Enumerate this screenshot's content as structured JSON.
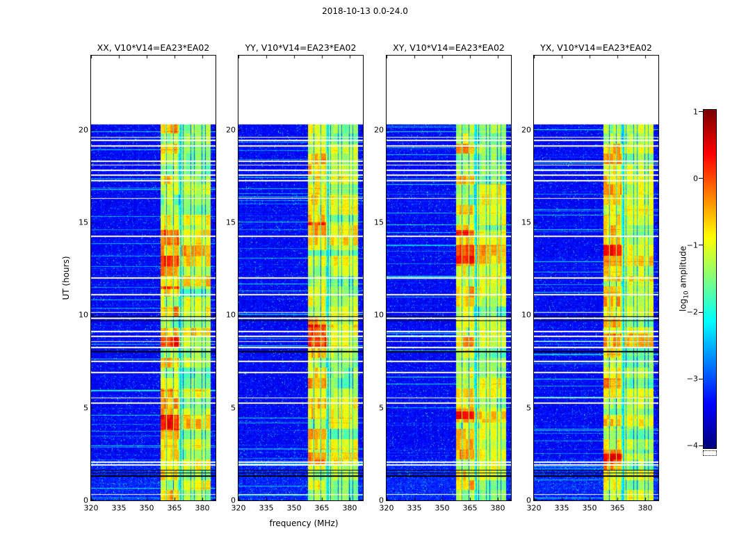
{
  "chart_data": {
    "type": "heatmap",
    "title": "2018-10-13 0.0-24.0",
    "xlabel": "frequency (MHz)",
    "ylabel": "UT (hours)",
    "xlim_mhz": [
      320,
      387
    ],
    "ylim_hours": [
      0,
      24
    ],
    "xticks": [
      320,
      335,
      350,
      365,
      380
    ],
    "yticks": [
      0,
      5,
      10,
      15,
      20
    ],
    "time_coverage_hours": [
      0,
      20.3
    ],
    "panels": [
      {
        "title": "XX, V10*V14=EA23*EA02",
        "pol": "XX",
        "hot_blocks": [
          [
            3.8,
            4.6
          ],
          [
            8.3,
            9.3
          ],
          [
            11.4,
            14.6
          ]
        ]
      },
      {
        "title": "YY, V10*V14=EA23*EA02",
        "pol": "YY",
        "hot_blocks": [
          [
            2.0,
            2.6
          ],
          [
            8.3,
            9.5
          ],
          [
            13.5,
            15.0
          ]
        ]
      },
      {
        "title": "XY, V10*V14=EA23*EA02",
        "pol": "XY",
        "hot_blocks": [
          [
            4.2,
            4.8
          ],
          [
            8.3,
            8.9
          ],
          [
            12.8,
            14.6
          ]
        ]
      },
      {
        "title": "YX, V10*V14=EA23*EA02",
        "pol": "YX",
        "hot_blocks": [
          [
            2.0,
            2.5
          ],
          [
            4.0,
            4.6
          ],
          [
            8.2,
            9.0
          ],
          [
            11.8,
            13.8
          ]
        ]
      }
    ],
    "colorbar": {
      "label": "log10 amplitude",
      "label_prefix": "log",
      "label_sub": "10",
      "label_suffix": " amplitude",
      "colormap": "jet",
      "vmin": -4,
      "vmax": 1,
      "tick_values": [
        1,
        0,
        -1,
        -2,
        -3,
        -4
      ],
      "tick_labels": [
        "1",
        "0",
        "−1",
        "−2",
        "−3",
        "−4"
      ]
    },
    "features": {
      "background_log_amplitude": -3.65,
      "rfi_band1_mhz": [
        357.5,
        368.0
      ],
      "rfi_band1_log_amplitude": -0.95,
      "rfi_band2_mhz": [
        368.9,
        384.6
      ],
      "rfi_band2_log_amplitude": -1.25,
      "band1_dark_channel_mhz": [
        360.8,
        364.3
      ],
      "band2_dark_channel_spacing_mhz": 2,
      "white_gap_times_hours": [
        0.35,
        1.95,
        2.1,
        5.3,
        5.55,
        6.95,
        7.55,
        8.3,
        8.6,
        8.9,
        9.15,
        9.85,
        10.15,
        11.15,
        12.05,
        14.3,
        16.3,
        17.3,
        17.6,
        17.85,
        18.1,
        18.35,
        19.15,
        19.45,
        19.6
      ],
      "black_gap_times_hours": [
        1.35,
        1.5,
        1.65,
        8.05,
        9.7,
        9.95
      ]
    }
  }
}
